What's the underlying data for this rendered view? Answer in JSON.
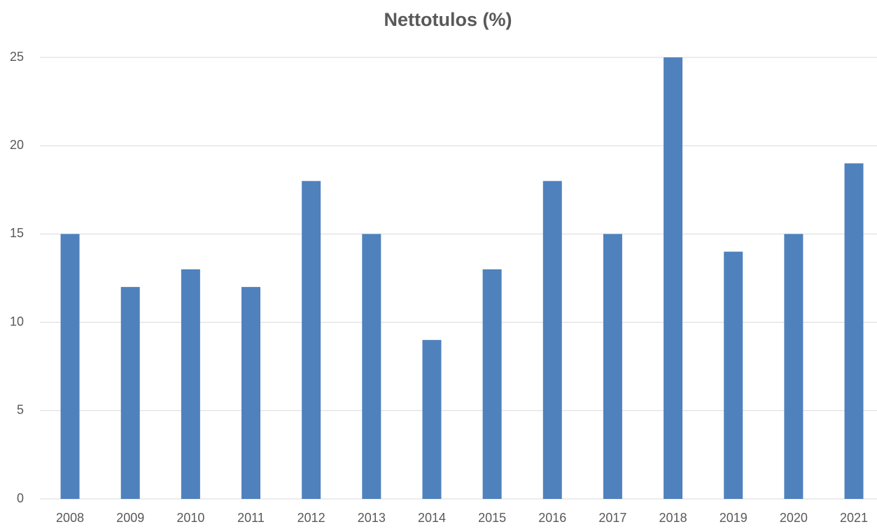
{
  "chart_data": {
    "type": "bar",
    "title": "Nettotulos (%)",
    "categories": [
      "2008",
      "2009",
      "2010",
      "2011",
      "2012",
      "2013",
      "2014",
      "2015",
      "2016",
      "2017",
      "2018",
      "2019",
      "2020",
      "2021"
    ],
    "values": [
      15,
      12,
      13,
      12,
      18,
      15,
      9,
      13,
      18,
      15,
      25,
      14,
      15,
      19
    ],
    "color": "#4f81bd",
    "ylim": [
      0,
      25
    ],
    "yticks": [
      0,
      5,
      10,
      15,
      20,
      25
    ],
    "grid": true
  }
}
